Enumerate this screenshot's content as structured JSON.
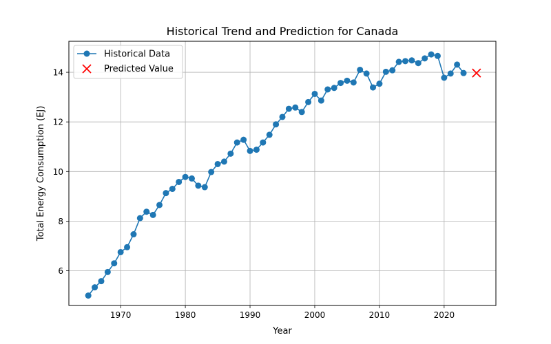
{
  "chart_data": {
    "type": "line",
    "title": "Historical Trend and Prediction for Canada",
    "xlabel": "Year",
    "ylabel": "Total Energy Consumption (EJ)",
    "xlim": [
      1962,
      2028
    ],
    "ylim": [
      4.6,
      15.25
    ],
    "xticks": [
      1970,
      1980,
      1990,
      2000,
      2010,
      2020
    ],
    "yticks": [
      6,
      8,
      10,
      12,
      14
    ],
    "grid": true,
    "legend_position": "upper-left",
    "colors": {
      "historical": "#1f77b4",
      "predicted": "#ff0000"
    },
    "series": [
      {
        "name": "Historical Data",
        "marker": "circle",
        "x": [
          1965,
          1966,
          1967,
          1968,
          1969,
          1970,
          1971,
          1972,
          1973,
          1974,
          1975,
          1976,
          1977,
          1978,
          1979,
          1980,
          1981,
          1982,
          1983,
          1984,
          1985,
          1986,
          1987,
          1988,
          1989,
          1990,
          1991,
          1992,
          1993,
          1994,
          1995,
          1996,
          1997,
          1998,
          1999,
          2000,
          2001,
          2002,
          2003,
          2004,
          2005,
          2006,
          2007,
          2008,
          2009,
          2010,
          2011,
          2012,
          2013,
          2014,
          2015,
          2016,
          2017,
          2018,
          2019,
          2020,
          2021,
          2022,
          2023
        ],
        "y": [
          5.0,
          5.33,
          5.58,
          5.95,
          6.3,
          6.75,
          6.95,
          7.47,
          8.12,
          8.38,
          8.25,
          8.65,
          9.13,
          9.3,
          9.58,
          9.78,
          9.72,
          9.43,
          9.37,
          9.98,
          10.3,
          10.4,
          10.72,
          11.17,
          11.28,
          10.83,
          10.88,
          11.17,
          11.48,
          11.9,
          12.2,
          12.53,
          12.58,
          12.4,
          12.8,
          13.13,
          12.86,
          13.31,
          13.37,
          13.57,
          13.66,
          13.59,
          14.1,
          13.95,
          13.39,
          13.54,
          14.02,
          14.08,
          14.42,
          14.45,
          14.48,
          14.37,
          14.56,
          14.72,
          14.66,
          13.78,
          13.95,
          14.31,
          13.97
        ]
      },
      {
        "name": "Predicted Value",
        "marker": "x",
        "x": [
          2025
        ],
        "y": [
          13.97
        ]
      }
    ]
  }
}
